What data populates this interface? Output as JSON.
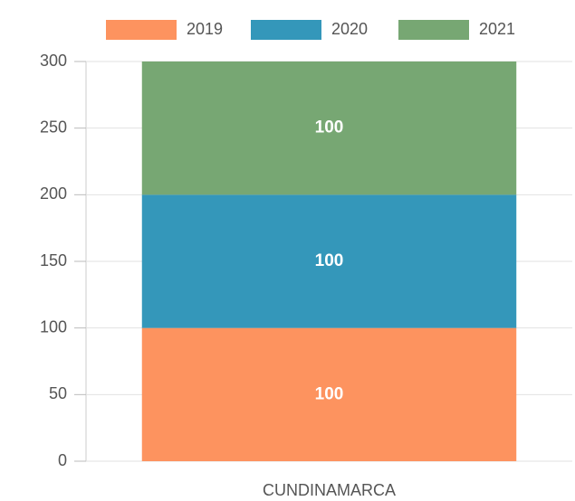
{
  "chart_data": {
    "type": "stacked_bar",
    "categories": [
      "CUNDINAMARCA"
    ],
    "series": [
      {
        "name": "2019",
        "color": "#fd935f",
        "values": [
          100
        ]
      },
      {
        "name": "2020",
        "color": "#3497ba",
        "values": [
          100
        ]
      },
      {
        "name": "2021",
        "color": "#77a773",
        "values": [
          100
        ]
      }
    ],
    "ylim": [
      0,
      300
    ],
    "yticks": [
      0,
      50,
      100,
      150,
      200,
      250,
      300
    ],
    "grid": true,
    "legend": "top"
  }
}
